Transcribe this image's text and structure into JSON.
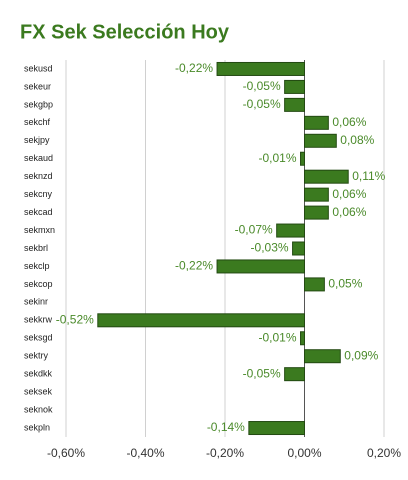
{
  "chart_data": {
    "type": "hbar",
    "title": "FX Sek Selección Hoy",
    "categories": [
      "sekusd",
      "sekeur",
      "sekgbp",
      "sekchf",
      "sekjpy",
      "sekaud",
      "seknzd",
      "sekcny",
      "sekcad",
      "sekmxn",
      "sekbrl",
      "sekclp",
      "sekcop",
      "sekinr",
      "sekkrw",
      "seksgd",
      "sektry",
      "sekdkk",
      "seksek",
      "seknok",
      "sekpln"
    ],
    "values": [
      -0.22,
      -0.05,
      -0.05,
      0.06,
      0.08,
      -0.01,
      0.11,
      0.06,
      0.06,
      -0.07,
      -0.03,
      -0.22,
      0.05,
      null,
      -0.52,
      -0.01,
      0.09,
      -0.05,
      null,
      null,
      -0.14
    ],
    "value_labels": [
      "-0,22%",
      "-0,05%",
      "-0,05%",
      "0,06%",
      "0,08%",
      "-0,01%",
      "0,11%",
      "0,06%",
      "0,06%",
      "-0,07%",
      "-0,03%",
      "-0,22%",
      "0,05%",
      null,
      "-0,52%",
      "-0,01%",
      "0,09%",
      "-0,05%",
      null,
      null,
      "-0,14%"
    ],
    "color": "#3b7a1f",
    "xlim": [
      -0.6,
      0.2
    ],
    "xticks": [
      {
        "value": -0.6,
        "label": "-0,60%"
      },
      {
        "value": -0.4,
        "label": "-0,40%"
      },
      {
        "value": -0.2,
        "label": "-0,20%"
      },
      {
        "value": 0,
        "label": "0,00%"
      },
      {
        "value": 0.2,
        "label": "0,20%"
      }
    ],
    "grid": true
  }
}
